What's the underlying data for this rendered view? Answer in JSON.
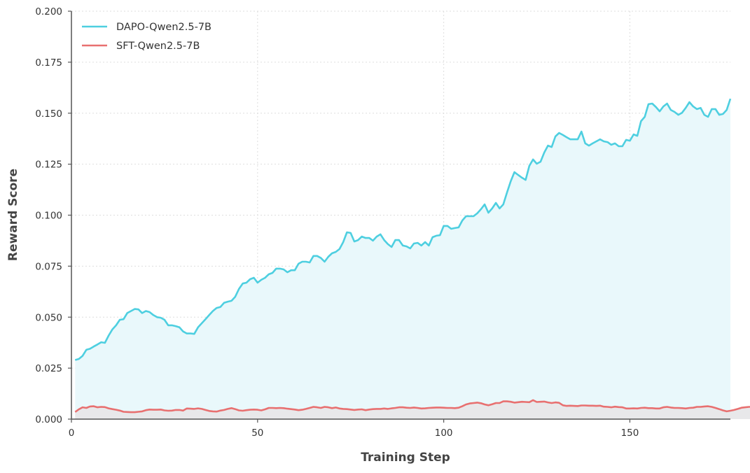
{
  "chart_data": {
    "type": "line",
    "title": "",
    "xlabel": "Training Step",
    "ylabel": "Reward Score",
    "xlim": [
      0,
      177
    ],
    "ylim": [
      0.0,
      0.2
    ],
    "xticks": [
      0,
      50,
      100,
      150
    ],
    "yticks": [
      0.0,
      0.025,
      0.05,
      0.075,
      0.1,
      0.125,
      0.15,
      0.175,
      0.2
    ],
    "ytick_labels": [
      "0.000",
      "0.025",
      "0.050",
      "0.075",
      "0.100",
      "0.125",
      "0.150",
      "0.175",
      "0.200"
    ],
    "xtick_labels": [
      "0",
      "50",
      "100",
      "150"
    ],
    "grid": true,
    "legend_position": "upper left",
    "series": [
      {
        "name": "DAPO-Qwen2.5-7B",
        "color": "#4ecfe0",
        "fill": "#e9f8fb",
        "x_start": 1,
        "values": [
          0.029,
          0.0295,
          0.031,
          0.034,
          0.0345,
          0.0356,
          0.0366,
          0.0377,
          0.0374,
          0.041,
          0.044,
          0.046,
          0.0487,
          0.049,
          0.052,
          0.053,
          0.054,
          0.0538,
          0.052,
          0.053,
          0.0525,
          0.051,
          0.05,
          0.0497,
          0.0487,
          0.046,
          0.046,
          0.0456,
          0.045,
          0.043,
          0.042,
          0.042,
          0.0418,
          0.045,
          0.047,
          0.049,
          0.051,
          0.053,
          0.0545,
          0.055,
          0.057,
          0.0576,
          0.058,
          0.06,
          0.0638,
          0.0665,
          0.0669,
          0.0686,
          0.0693,
          0.0669,
          0.0683,
          0.0693,
          0.071,
          0.0717,
          0.0738,
          0.0738,
          0.0734,
          0.072,
          0.073,
          0.073,
          0.0762,
          0.0772,
          0.0772,
          0.0768,
          0.08,
          0.08,
          0.079,
          0.0772,
          0.0796,
          0.0813,
          0.082,
          0.0834,
          0.0868,
          0.0916,
          0.0913,
          0.0871,
          0.0878,
          0.0895,
          0.0888,
          0.0888,
          0.0875,
          0.0895,
          0.0906,
          0.0878,
          0.0858,
          0.0844,
          0.0878,
          0.0878,
          0.0851,
          0.0847,
          0.0837,
          0.0861,
          0.0864,
          0.0851,
          0.0868,
          0.0851,
          0.0892,
          0.0899,
          0.0902,
          0.0947,
          0.0947,
          0.0933,
          0.0937,
          0.094,
          0.0974,
          0.0995,
          0.0995,
          0.0995,
          0.1009,
          0.1029,
          0.1053,
          0.1012,
          0.1033,
          0.106,
          0.1033,
          0.1053,
          0.1111,
          0.1166,
          0.1211,
          0.1197,
          0.1184,
          0.1173,
          0.1242,
          0.1273,
          0.1252,
          0.1262,
          0.1307,
          0.1341,
          0.1334,
          0.1386,
          0.1403,
          0.1393,
          0.1382,
          0.1372,
          0.1372,
          0.1372,
          0.141,
          0.1352,
          0.1341,
          0.1352,
          0.1362,
          0.1372,
          0.1362,
          0.1358,
          0.1345,
          0.1352,
          0.1338,
          0.1338,
          0.1369,
          0.1365,
          0.1396,
          0.1389,
          0.1461,
          0.1482,
          0.1544,
          0.1547,
          0.153,
          0.1509,
          0.1533,
          0.1547,
          0.1516,
          0.1506,
          0.1492,
          0.1502,
          0.1526,
          0.1554,
          0.1533,
          0.152,
          0.1526,
          0.1492,
          0.1482,
          0.152,
          0.152,
          0.1492,
          0.1496,
          0.1516,
          0.1571
        ]
      },
      {
        "name": "SFT-Qwen2.5-7B",
        "color": "#e87070",
        "fill": "#e8e8ea",
        "x_start": 1,
        "values": [
          0.0035,
          0.0048,
          0.0058,
          0.0055,
          0.0062,
          0.0063,
          0.0058,
          0.006,
          0.0059,
          0.0053,
          0.0049,
          0.0046,
          0.0042,
          0.0036,
          0.0035,
          0.0034,
          0.0034,
          0.0036,
          0.0038,
          0.0044,
          0.0047,
          0.0046,
          0.0046,
          0.0047,
          0.0043,
          0.0041,
          0.0042,
          0.0045,
          0.0045,
          0.0042,
          0.0052,
          0.0051,
          0.005,
          0.0053,
          0.005,
          0.0045,
          0.004,
          0.0038,
          0.0037,
          0.0042,
          0.0045,
          0.005,
          0.0054,
          0.0049,
          0.0043,
          0.0041,
          0.0044,
          0.0046,
          0.0047,
          0.0046,
          0.0043,
          0.0048,
          0.0055,
          0.0055,
          0.0054,
          0.0055,
          0.0054,
          0.0051,
          0.0049,
          0.0047,
          0.0044,
          0.0046,
          0.005,
          0.0055,
          0.006,
          0.0058,
          0.0055,
          0.006,
          0.0058,
          0.0054,
          0.0057,
          0.0052,
          0.005,
          0.0049,
          0.0047,
          0.0045,
          0.0047,
          0.0048,
          0.0044,
          0.0047,
          0.0049,
          0.005,
          0.005,
          0.0052,
          0.005,
          0.0053,
          0.0055,
          0.0058,
          0.0058,
          0.0056,
          0.0055,
          0.0057,
          0.0055,
          0.0052,
          0.0053,
          0.0055,
          0.0056,
          0.0057,
          0.0057,
          0.0056,
          0.0055,
          0.0055,
          0.0054,
          0.0056,
          0.0063,
          0.0072,
          0.0077,
          0.0079,
          0.0081,
          0.0078,
          0.0072,
          0.0068,
          0.0073,
          0.0079,
          0.0079,
          0.0087,
          0.0087,
          0.0085,
          0.0081,
          0.0083,
          0.0085,
          0.0084,
          0.0083,
          0.0093,
          0.0084,
          0.0085,
          0.0086,
          0.0082,
          0.0079,
          0.0082,
          0.008,
          0.0068,
          0.0065,
          0.0066,
          0.0065,
          0.0064,
          0.0067,
          0.0067,
          0.0066,
          0.0066,
          0.0065,
          0.0066,
          0.0061,
          0.006,
          0.0058,
          0.0061,
          0.0059,
          0.0058,
          0.0052,
          0.0052,
          0.0053,
          0.0052,
          0.0055,
          0.0056,
          0.0054,
          0.0054,
          0.0052,
          0.0052,
          0.0058,
          0.006,
          0.0057,
          0.0055,
          0.0055,
          0.0054,
          0.0052,
          0.0055,
          0.0056,
          0.006,
          0.006,
          0.0062,
          0.0063,
          0.006,
          0.0055,
          0.0049,
          0.0043,
          0.0038,
          0.0041,
          0.0045,
          0.005,
          0.0056,
          0.0058,
          0.006,
          0.006
        ]
      }
    ]
  }
}
